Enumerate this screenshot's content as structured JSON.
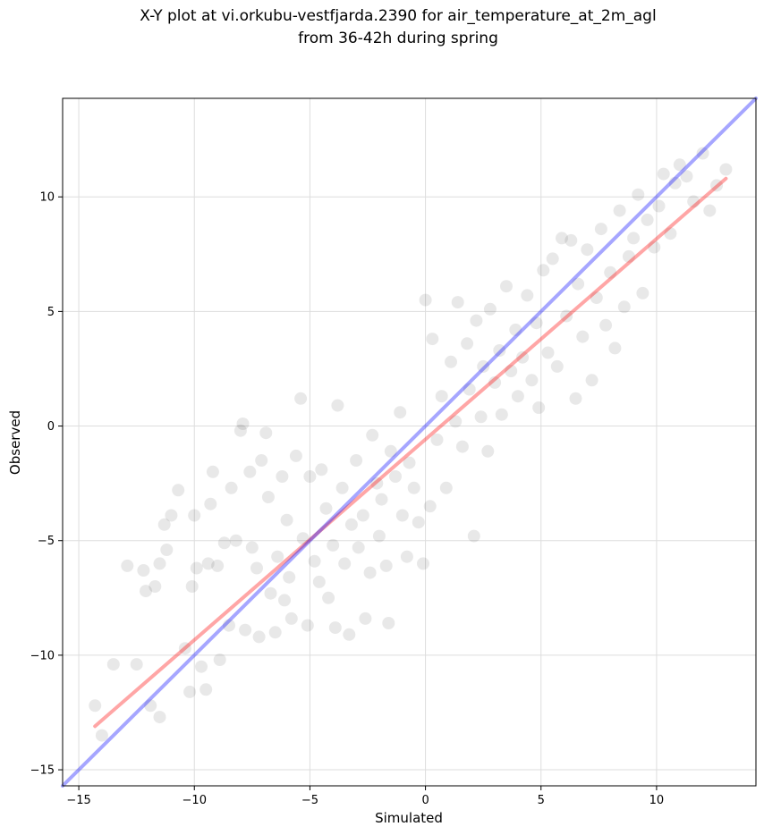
{
  "chart_data": {
    "type": "scatter",
    "title": "X-Y plot at vi.orkubu-vestfjarda.2390 for air_temperature_at_2m_agl",
    "subtitle": "from 36-42h during spring",
    "xlabel": "Simulated",
    "ylabel": "Observed",
    "xlim": [
      -15.7,
      14.3
    ],
    "ylim": [
      -15.7,
      14.3
    ],
    "xticks": [
      -15,
      -10,
      -5,
      0,
      5,
      10
    ],
    "yticks": [
      -15,
      -10,
      -5,
      0,
      5,
      10
    ],
    "tick_labels": [
      "−15",
      "−10",
      "−5",
      "0",
      "5",
      "10"
    ],
    "grid": true,
    "point_color": "#000000",
    "point_alpha": 0.09,
    "series": [
      {
        "kind": "scatter",
        "points": [
          [
            -14.3,
            -12.2
          ],
          [
            -14.0,
            -13.5
          ],
          [
            -13.5,
            -10.4
          ],
          [
            -12.9,
            -6.1
          ],
          [
            -12.5,
            -10.4
          ],
          [
            -12.2,
            -6.3
          ],
          [
            -12.1,
            -7.2
          ],
          [
            -11.9,
            -12.2
          ],
          [
            -11.7,
            -7.0
          ],
          [
            -11.5,
            -12.7
          ],
          [
            -11.5,
            -6.0
          ],
          [
            -11.3,
            -4.3
          ],
          [
            -11.2,
            -5.4
          ],
          [
            -11.0,
            -3.9
          ],
          [
            -10.7,
            -2.8
          ],
          [
            -10.4,
            -9.7
          ],
          [
            -10.2,
            -11.6
          ],
          [
            -10.1,
            -7.0
          ],
          [
            -10.0,
            -3.9
          ],
          [
            -9.9,
            -6.2
          ],
          [
            -9.7,
            -10.5
          ],
          [
            -9.5,
            -11.5
          ],
          [
            -9.4,
            -6.0
          ],
          [
            -9.3,
            -3.4
          ],
          [
            -9.2,
            -2.0
          ],
          [
            -9.0,
            -6.1
          ],
          [
            -8.9,
            -10.2
          ],
          [
            -8.7,
            -5.1
          ],
          [
            -8.5,
            -8.7
          ],
          [
            -8.4,
            -2.7
          ],
          [
            -8.2,
            -5.0
          ],
          [
            -8.0,
            -0.2
          ],
          [
            -7.9,
            0.1
          ],
          [
            -7.8,
            -8.9
          ],
          [
            -7.6,
            -2.0
          ],
          [
            -7.5,
            -5.3
          ],
          [
            -7.3,
            -6.2
          ],
          [
            -7.2,
            -9.2
          ],
          [
            -7.1,
            -1.5
          ],
          [
            -6.9,
            -0.3
          ],
          [
            -6.8,
            -3.1
          ],
          [
            -6.7,
            -7.3
          ],
          [
            -6.5,
            -9.0
          ],
          [
            -6.4,
            -5.7
          ],
          [
            -6.2,
            -2.2
          ],
          [
            -6.1,
            -7.6
          ],
          [
            -6.0,
            -4.1
          ],
          [
            -5.9,
            -6.6
          ],
          [
            -5.8,
            -8.4
          ],
          [
            -5.6,
            -1.3
          ],
          [
            -5.4,
            1.2
          ],
          [
            -5.3,
            -4.9
          ],
          [
            -5.1,
            -8.7
          ],
          [
            -5.0,
            -2.2
          ],
          [
            -4.8,
            -5.9
          ],
          [
            -4.6,
            -6.8
          ],
          [
            -4.5,
            -1.9
          ],
          [
            -4.3,
            -3.6
          ],
          [
            -4.2,
            -7.5
          ],
          [
            -4.0,
            -5.2
          ],
          [
            -3.9,
            -8.8
          ],
          [
            -3.8,
            0.9
          ],
          [
            -3.6,
            -2.7
          ],
          [
            -3.5,
            -6.0
          ],
          [
            -3.3,
            -9.1
          ],
          [
            -3.2,
            -4.3
          ],
          [
            -3.0,
            -1.5
          ],
          [
            -2.9,
            -5.3
          ],
          [
            -2.7,
            -3.9
          ],
          [
            -2.6,
            -8.4
          ],
          [
            -2.4,
            -6.4
          ],
          [
            -2.3,
            -0.4
          ],
          [
            -2.1,
            -2.5
          ],
          [
            -2.0,
            -4.8
          ],
          [
            -1.9,
            -3.2
          ],
          [
            -1.7,
            -6.1
          ],
          [
            -1.6,
            -8.6
          ],
          [
            -1.5,
            -1.1
          ],
          [
            -1.3,
            -2.2
          ],
          [
            -1.1,
            0.6
          ],
          [
            -1.0,
            -3.9
          ],
          [
            -0.8,
            -5.7
          ],
          [
            -0.7,
            -1.6
          ],
          [
            -0.5,
            -2.7
          ],
          [
            -0.3,
            -4.2
          ],
          [
            -0.1,
            -6.0
          ],
          [
            0.0,
            5.5
          ],
          [
            0.2,
            -3.5
          ],
          [
            0.3,
            3.8
          ],
          [
            0.5,
            -0.6
          ],
          [
            0.7,
            1.3
          ],
          [
            0.9,
            -2.7
          ],
          [
            1.1,
            2.8
          ],
          [
            1.3,
            0.2
          ],
          [
            1.4,
            5.4
          ],
          [
            1.6,
            -0.9
          ],
          [
            1.8,
            3.6
          ],
          [
            1.9,
            1.6
          ],
          [
            2.1,
            -4.8
          ],
          [
            2.2,
            4.6
          ],
          [
            2.4,
            0.4
          ],
          [
            2.5,
            2.6
          ],
          [
            2.7,
            -1.1
          ],
          [
            2.8,
            5.1
          ],
          [
            3.0,
            1.9
          ],
          [
            3.2,
            3.3
          ],
          [
            3.3,
            0.5
          ],
          [
            3.5,
            6.1
          ],
          [
            3.7,
            2.4
          ],
          [
            3.9,
            4.2
          ],
          [
            4.0,
            1.3
          ],
          [
            4.2,
            3.0
          ],
          [
            4.4,
            5.7
          ],
          [
            4.6,
            2.0
          ],
          [
            4.8,
            4.5
          ],
          [
            4.9,
            0.8
          ],
          [
            5.1,
            6.8
          ],
          [
            5.3,
            3.2
          ],
          [
            5.5,
            7.3
          ],
          [
            5.7,
            2.6
          ],
          [
            5.9,
            8.2
          ],
          [
            6.1,
            4.8
          ],
          [
            6.3,
            8.1
          ],
          [
            6.5,
            1.2
          ],
          [
            6.6,
            6.2
          ],
          [
            6.8,
            3.9
          ],
          [
            7.0,
            7.7
          ],
          [
            7.2,
            2.0
          ],
          [
            7.4,
            5.6
          ],
          [
            7.6,
            8.6
          ],
          [
            7.8,
            4.4
          ],
          [
            8.0,
            6.7
          ],
          [
            8.2,
            3.4
          ],
          [
            8.4,
            9.4
          ],
          [
            8.6,
            5.2
          ],
          [
            8.8,
            7.4
          ],
          [
            9.0,
            8.2
          ],
          [
            9.2,
            10.1
          ],
          [
            9.4,
            5.8
          ],
          [
            9.6,
            9.0
          ],
          [
            9.9,
            7.8
          ],
          [
            10.1,
            9.6
          ],
          [
            10.3,
            11.0
          ],
          [
            10.6,
            8.4
          ],
          [
            10.8,
            10.6
          ],
          [
            11.0,
            11.4
          ],
          [
            11.3,
            10.9
          ],
          [
            11.6,
            9.8
          ],
          [
            12.0,
            11.9
          ],
          [
            12.3,
            9.4
          ],
          [
            12.6,
            10.5
          ],
          [
            13.0,
            11.2
          ]
        ]
      },
      {
        "kind": "line",
        "name": "",
        "color": "#ff0000",
        "alpha": 0.35,
        "points": [
          [
            -14.3,
            -13.1
          ],
          [
            13.0,
            10.8
          ]
        ]
      },
      {
        "kind": "line",
        "name": "",
        "color": "#0000ff",
        "alpha": 0.35,
        "points": [
          [
            -15.7,
            -15.7
          ],
          [
            14.3,
            14.3
          ]
        ]
      }
    ]
  }
}
